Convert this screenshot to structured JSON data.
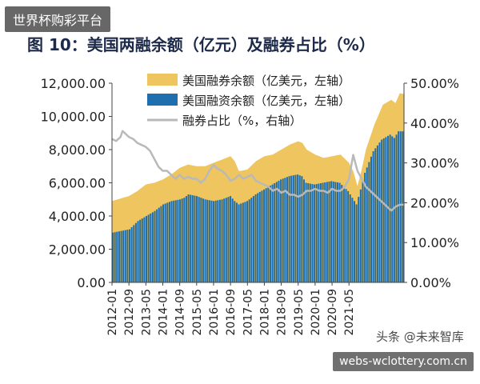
{
  "overlay": {
    "top_watermark": "世界杯购彩平台",
    "source_watermark": "头条 @未来智库",
    "bottom_watermark": "webs-wclottery.com.cn"
  },
  "chart_data": {
    "type": "area",
    "title": "图  10：美国两融余额（亿元）及融券占比（%）",
    "x_ticks": [
      "2012-01",
      "2012-09",
      "2013-05",
      "2014-01",
      "2014-09",
      "2015-05",
      "2016-01",
      "2016-09",
      "2017-05",
      "2018-01",
      "2018-09",
      "2019-05",
      "2020-01",
      "2020-09",
      "2021-05"
    ],
    "y_left": {
      "ticks": [
        "0.00",
        "2,000.00",
        "4,000.00",
        "6,000.00",
        "8,000.00",
        "10,000.00",
        "12,000.00"
      ],
      "lim": [
        0,
        12000
      ]
    },
    "y_right": {
      "ticks": [
        "0.00%",
        "10.00%",
        "20.00%",
        "30.00%",
        "40.00%",
        "50.00%"
      ],
      "lim": [
        0,
        50
      ]
    },
    "series": [
      {
        "name": "美国融券余额（亿美元，左轴）",
        "kind": "area-total",
        "color": "#eec55e",
        "points": [
          [
            0,
            4900
          ],
          [
            4,
            5050
          ],
          [
            8,
            5200
          ],
          [
            12,
            5500
          ],
          [
            16,
            5900
          ],
          [
            20,
            6000
          ],
          [
            24,
            6200
          ],
          [
            28,
            6500
          ],
          [
            32,
            6900
          ],
          [
            36,
            7100
          ],
          [
            40,
            7000
          ],
          [
            44,
            7000
          ],
          [
            48,
            7200
          ],
          [
            52,
            7400
          ],
          [
            56,
            7600
          ],
          [
            58,
            7300
          ],
          [
            60,
            6700
          ],
          [
            64,
            6800
          ],
          [
            68,
            7300
          ],
          [
            72,
            7600
          ],
          [
            76,
            7700
          ],
          [
            80,
            8000
          ],
          [
            84,
            8300
          ],
          [
            88,
            8500
          ],
          [
            90,
            8400
          ],
          [
            92,
            8000
          ],
          [
            96,
            7700
          ],
          [
            100,
            7500
          ],
          [
            104,
            7600
          ],
          [
            108,
            7700
          ],
          [
            112,
            7200
          ],
          [
            114,
            6700
          ],
          [
            116,
            5800
          ],
          [
            118,
            6800
          ],
          [
            120,
            8000
          ],
          [
            124,
            9500
          ],
          [
            128,
            10700
          ],
          [
            132,
            11000
          ],
          [
            134,
            10800
          ],
          [
            136,
            11400
          ],
          [
            138,
            11350
          ]
        ]
      },
      {
        "name": "美国融资余额（亿美元，左轴）",
        "kind": "bars",
        "color": "#1f6fae",
        "points": [
          [
            0,
            3000
          ],
          [
            4,
            3100
          ],
          [
            8,
            3200
          ],
          [
            12,
            3700
          ],
          [
            16,
            4000
          ],
          [
            20,
            4300
          ],
          [
            24,
            4700
          ],
          [
            28,
            4900
          ],
          [
            32,
            5000
          ],
          [
            34,
            5100
          ],
          [
            36,
            5300
          ],
          [
            40,
            5200
          ],
          [
            44,
            5000
          ],
          [
            48,
            4900
          ],
          [
            52,
            5000
          ],
          [
            56,
            5200
          ],
          [
            58,
            4900
          ],
          [
            60,
            4700
          ],
          [
            64,
            4900
          ],
          [
            68,
            5300
          ],
          [
            72,
            5600
          ],
          [
            76,
            5900
          ],
          [
            80,
            6200
          ],
          [
            84,
            6400
          ],
          [
            88,
            6500
          ],
          [
            90,
            6400
          ],
          [
            92,
            6000
          ],
          [
            96,
            5900
          ],
          [
            100,
            6000
          ],
          [
            104,
            6100
          ],
          [
            108,
            6000
          ],
          [
            112,
            5500
          ],
          [
            114,
            5100
          ],
          [
            116,
            4700
          ],
          [
            118,
            5600
          ],
          [
            120,
            6600
          ],
          [
            124,
            7900
          ],
          [
            128,
            8600
          ],
          [
            132,
            8900
          ],
          [
            134,
            8700
          ],
          [
            136,
            9100
          ],
          [
            138,
            9100
          ]
        ]
      },
      {
        "name": "融券占比（%，右轴）",
        "kind": "line",
        "color": "#b9b9b9",
        "points": [
          [
            0,
            36
          ],
          [
            2,
            35.5
          ],
          [
            4,
            36.5
          ],
          [
            5,
            38
          ],
          [
            6,
            37.5
          ],
          [
            8,
            36.5
          ],
          [
            10,
            36
          ],
          [
            12,
            35
          ],
          [
            14,
            34.5
          ],
          [
            16,
            34
          ],
          [
            18,
            33
          ],
          [
            20,
            31
          ],
          [
            22,
            29
          ],
          [
            24,
            28
          ],
          [
            26,
            28
          ],
          [
            28,
            27
          ],
          [
            30,
            26
          ],
          [
            32,
            27
          ],
          [
            34,
            26
          ],
          [
            36,
            26.5
          ],
          [
            38,
            26
          ],
          [
            40,
            26
          ],
          [
            42,
            25
          ],
          [
            44,
            26
          ],
          [
            46,
            28
          ],
          [
            48,
            29.5
          ],
          [
            50,
            28.5
          ],
          [
            52,
            28
          ],
          [
            54,
            27
          ],
          [
            56,
            25.5
          ],
          [
            58,
            26
          ],
          [
            60,
            27
          ],
          [
            62,
            26
          ],
          [
            64,
            26.5
          ],
          [
            66,
            27
          ],
          [
            68,
            25.5
          ],
          [
            70,
            25
          ],
          [
            72,
            24.5
          ],
          [
            74,
            24
          ],
          [
            76,
            23
          ],
          [
            78,
            23.5
          ],
          [
            80,
            22.5
          ],
          [
            82,
            23
          ],
          [
            84,
            22
          ],
          [
            86,
            22
          ],
          [
            88,
            21.5
          ],
          [
            90,
            22
          ],
          [
            92,
            23
          ],
          [
            94,
            23
          ],
          [
            96,
            23.5
          ],
          [
            98,
            23
          ],
          [
            100,
            23
          ],
          [
            102,
            22.5
          ],
          [
            104,
            23.5
          ],
          [
            106,
            23
          ],
          [
            108,
            23
          ],
          [
            110,
            24
          ],
          [
            112,
            26
          ],
          [
            114,
            32
          ],
          [
            116,
            28
          ],
          [
            118,
            26
          ],
          [
            120,
            24
          ],
          [
            122,
            23
          ],
          [
            124,
            22
          ],
          [
            126,
            21
          ],
          [
            128,
            20
          ],
          [
            130,
            19
          ],
          [
            132,
            18
          ],
          [
            134,
            19
          ],
          [
            136,
            19.5
          ],
          [
            138,
            19.5
          ]
        ]
      }
    ],
    "x_index_max": 138,
    "grid": false,
    "legend_position": "top-left"
  }
}
